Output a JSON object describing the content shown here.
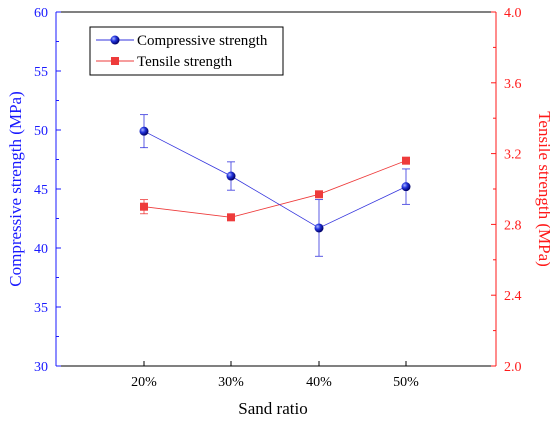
{
  "chart_data": {
    "type": "line",
    "categories": [
      "20%",
      "30%",
      "40%",
      "50%"
    ],
    "xlabel": "Sand ratio",
    "ylabel": "Compressive strength (MPa)",
    "ylabel_right": "Tensile strength (MPa)",
    "ylim": [
      30,
      60
    ],
    "yticks": [
      30,
      35,
      40,
      45,
      50,
      55,
      60
    ],
    "ylim_right": [
      2.0,
      4.0
    ],
    "yticks_right": [
      "2.0",
      "2.4",
      "2.8",
      "3.2",
      "3.6",
      "4.0"
    ],
    "grid": false,
    "legend_placement": "top-left",
    "series": [
      {
        "name": "Compressive strength",
        "axis": "left",
        "marker": "sphere",
        "color": "#3333dd",
        "values": [
          49.9,
          46.1,
          41.7,
          45.2
        ],
        "error": [
          1.4,
          1.2,
          2.4,
          1.5
        ]
      },
      {
        "name": "Tensile strength",
        "axis": "right",
        "marker": "square",
        "color": "#ee3b3b",
        "values": [
          2.9,
          2.84,
          2.97,
          3.16
        ],
        "error": [
          0.04,
          0.0,
          0.0,
          0.0
        ]
      }
    ],
    "colors": {
      "left_axis": "#1a1aff",
      "right_axis": "#ff1a1a"
    }
  }
}
